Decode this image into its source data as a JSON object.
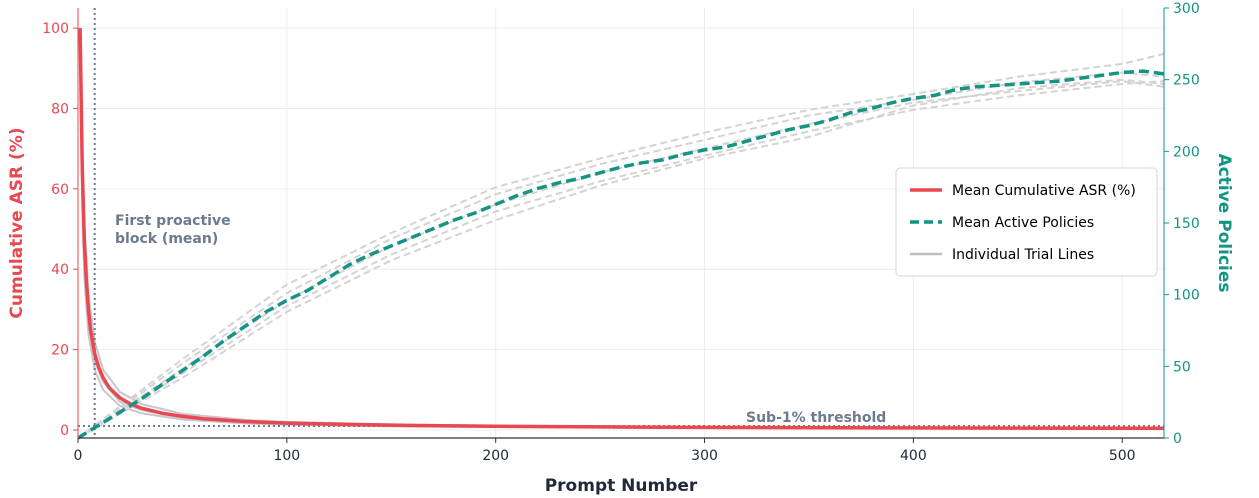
{
  "chart_data": {
    "type": "line",
    "title": "",
    "xlabel": "Prompt Number",
    "ylabel_left": "Cumulative ASR (%)",
    "ylabel_right": "Active Policies",
    "xlim": [
      0,
      520
    ],
    "ylim_left": [
      -2,
      105
    ],
    "ylim_right": [
      0,
      300
    ],
    "x_ticks": [
      "0",
      "100",
      "200",
      "300",
      "400",
      "500"
    ],
    "y_left_ticks": [
      "0",
      "20",
      "40",
      "60",
      "80",
      "100"
    ],
    "y_right_ticks": [
      "0",
      "50",
      "100",
      "150",
      "200",
      "250",
      "300"
    ],
    "grid": true,
    "legend_position": "center-right",
    "legend": {
      "asr": "Mean Cumulative ASR (%)",
      "policies": "Mean Active Policies",
      "trials": "Individual Trial Lines"
    },
    "annotations": {
      "first_block_line1": "First proactive",
      "first_block_line2": "block (mean)",
      "threshold": "Sub-1% threshold"
    },
    "reference_lines": {
      "first_block_x": 8,
      "threshold_y": 1
    },
    "colors": {
      "asr": "#e8484f",
      "policies": "#149485",
      "trials": "#c2bac6",
      "trials_dashed": "#d3d3d6",
      "annotation": "#6b7b8f",
      "axis_label": "#1e2939"
    },
    "series": [
      {
        "name": "Mean Cumulative ASR (%)",
        "axis": "left",
        "x": [
          1,
          2,
          3,
          4,
          5,
          6,
          8,
          10,
          12,
          15,
          20,
          25,
          30,
          40,
          50,
          60,
          80,
          100,
          130,
          160,
          200,
          250,
          300,
          350,
          400,
          450,
          520
        ],
        "y": [
          100,
          66,
          47,
          37,
          30,
          25,
          19,
          15.5,
          13,
          10.5,
          8,
          6.5,
          5.5,
          4.2,
          3.4,
          2.8,
          2.1,
          1.7,
          1.35,
          1.1,
          0.9,
          0.75,
          0.65,
          0.58,
          0.52,
          0.47,
          0.42
        ]
      },
      {
        "name": "Mean Active Policies",
        "axis": "right",
        "x": [
          0,
          10,
          20,
          30,
          40,
          50,
          60,
          70,
          80,
          90,
          100,
          110,
          120,
          130,
          140,
          150,
          160,
          170,
          180,
          190,
          200,
          210,
          220,
          230,
          240,
          250,
          260,
          270,
          280,
          290,
          300,
          310,
          320,
          330,
          340,
          350,
          360,
          370,
          380,
          390,
          400,
          410,
          420,
          430,
          440,
          450,
          460,
          470,
          480,
          490,
          500,
          510,
          520
        ],
        "y": [
          0,
          9,
          18,
          27,
          37,
          47,
          57,
          68,
          78,
          88,
          96,
          103,
          112,
          121,
          128,
          134,
          140,
          146,
          152,
          157,
          163,
          169,
          174,
          178,
          181,
          185,
          189,
          192,
          194,
          198,
          201,
          203,
          207,
          211,
          215,
          218,
          222,
          227,
          230,
          234,
          237,
          239,
          243,
          245,
          246,
          247,
          248,
          249,
          251,
          253,
          255,
          256,
          254
        ]
      }
    ],
    "trial_series": [
      {
        "axis": "left",
        "x": [
          1,
          2,
          3,
          5,
          8,
          12,
          20,
          30,
          50,
          80,
          100,
          150,
          200,
          300,
          400,
          520
        ],
        "y": [
          100,
          70,
          52,
          34,
          22,
          15,
          9.5,
          6.5,
          4,
          2.5,
          2,
          1.4,
          1.05,
          0.75,
          0.6,
          0.48
        ]
      },
      {
        "axis": "left",
        "x": [
          1,
          2,
          3,
          5,
          8,
          12,
          20,
          30,
          50,
          80,
          100,
          150,
          200,
          300,
          400,
          520
        ],
        "y": [
          100,
          62,
          43,
          27,
          17,
          12,
          7,
          5,
          3,
          1.9,
          1.5,
          1.05,
          0.82,
          0.6,
          0.48,
          0.4
        ]
      },
      {
        "axis": "left",
        "x": [
          1,
          2,
          3,
          5,
          8,
          12,
          20,
          30,
          50,
          80,
          100,
          150,
          200,
          300,
          400,
          520
        ],
        "y": [
          100,
          55,
          38,
          24,
          15,
          10,
          6,
          4.2,
          2.6,
          1.6,
          1.3,
          0.9,
          0.7,
          0.5,
          0.42,
          0.35
        ]
      },
      {
        "axis": "right",
        "x": [
          0,
          50,
          100,
          150,
          200,
          250,
          300,
          350,
          400,
          450,
          500,
          520
        ],
        "y": [
          0,
          55,
          107,
          143,
          175,
          195,
          213,
          229,
          240,
          252,
          261,
          268
        ]
      },
      {
        "axis": "right",
        "x": [
          0,
          50,
          100,
          150,
          200,
          250,
          300,
          350,
          400,
          450,
          500,
          520
        ],
        "y": [
          0,
          45,
          92,
          128,
          158,
          179,
          197,
          214,
          229,
          239,
          247,
          249
        ]
      },
      {
        "axis": "right",
        "x": [
          0,
          50,
          100,
          150,
          200,
          250,
          300,
          350,
          400,
          450,
          500,
          520
        ],
        "y": [
          0,
          42,
          88,
          124,
          152,
          176,
          195,
          210,
          232,
          244,
          250,
          247
        ]
      },
      {
        "axis": "right",
        "x": [
          0,
          50,
          100,
          150,
          200,
          250,
          300,
          350,
          400,
          450,
          500,
          520
        ],
        "y": [
          0,
          52,
          101,
          139,
          170,
          191,
          208,
          225,
          236,
          248,
          255,
          252
        ]
      },
      {
        "axis": "right",
        "x": [
          0,
          50,
          100,
          150,
          200,
          250,
          300,
          350,
          400,
          450,
          500,
          520
        ],
        "y": [
          0,
          48,
          96,
          134,
          163,
          185,
          202,
          219,
          234,
          242,
          249,
          245
        ]
      }
    ]
  }
}
